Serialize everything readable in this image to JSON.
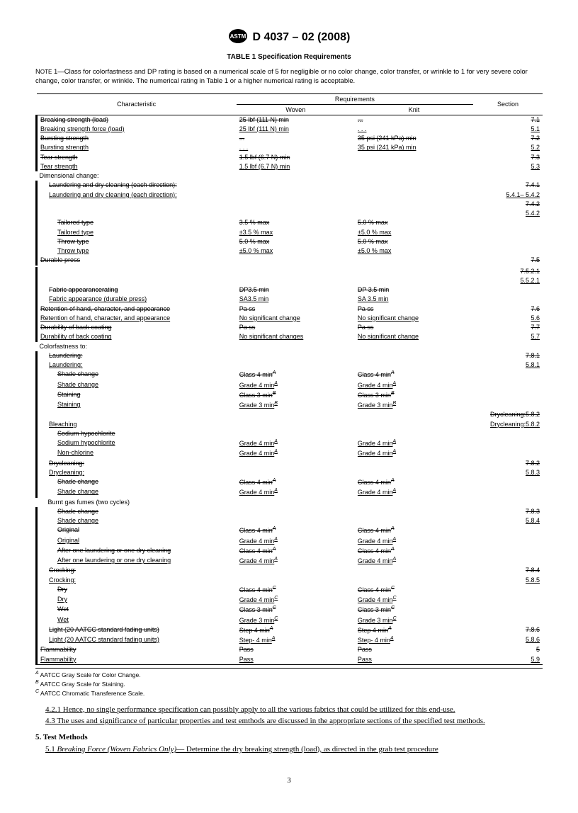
{
  "doc_id": "D 4037 – 02 (2008)",
  "table_title": "TABLE 1  Specification Requirements",
  "note": "NOTE 1—Class for colorfastness and DP rating is based on a numerical scale of 5 for negligible or no color change, color transfer, or wrinkle to 1 for very severe color change, color transfer, or wrinkle. The numerical rating in Table 1 or a higher numerical rating is acceptable.",
  "headers": {
    "characteristic": "Characteristic",
    "requirements": "Requirements",
    "woven": "Woven",
    "knit": "Knit",
    "section": "Section"
  },
  "rows": [
    {
      "c": "Breaking strength (load)",
      "w": "25 lbf (111 N) min",
      "k": "...",
      "s": "7.1",
      "bar": 1,
      "strike": 1
    },
    {
      "c": "Breaking strength force (load)",
      "w": "25 lbf (111 N) min",
      "k": ". . .",
      "s": "5.1",
      "bar": 1,
      "ul": 1
    },
    {
      "c": "Bursting strength",
      "w": "...",
      "k": "35 psi (241 kPa) min",
      "s": "7.2",
      "bar": 1,
      "strike": 1
    },
    {
      "c": "Bursting strength",
      "w": ". . .",
      "k": "35 psi (241 kPa) min",
      "s": "5.2",
      "bar": 1,
      "ul": 1
    },
    {
      "c": "Tear strength",
      "w": "1.5 lbf (6.7 N) min",
      "k": "",
      "s": "7.3",
      "bar": 1,
      "strike": 1
    },
    {
      "c": "Tear strength",
      "w": "1.5 lbf (6.7 N) min",
      "k": "",
      "s": "5.3",
      "bar": 1,
      "ul": 1
    },
    {
      "c": "Dimensional change:",
      "w": "",
      "k": "",
      "s": "",
      "bar": 0
    },
    {
      "c": "Laundering and dry cleaning (each direction):",
      "w": "",
      "k": "",
      "s": "7.4.1",
      "bar": 1,
      "strike": 1,
      "indent": 1
    },
    {
      "c": "Laundering and dry cleaning (each direction):",
      "w": "",
      "k": "",
      "s": "5.4.1– 5.4.2",
      "bar": 1,
      "ul": 1,
      "indent": 1
    },
    {
      "c": "",
      "w": "",
      "k": "",
      "s": "7.4.2",
      "bar": 1,
      "strike": 1
    },
    {
      "c": "",
      "w": "",
      "k": "",
      "s": "5.4.2",
      "bar": 1,
      "ul": 1
    },
    {
      "c": "Tailored type",
      "w": "3.5 % max",
      "k": "5.0 % max",
      "s": "",
      "bar": 1,
      "strike": 1,
      "indent": 2
    },
    {
      "c": "Tailored type",
      "w": "±3.5 % max",
      "k": "±5.0 % max",
      "s": "",
      "bar": 1,
      "ul": 1,
      "indent": 2
    },
    {
      "c": "Throw type",
      "w": "5.0 % max",
      "k": "5.0 % max",
      "s": "",
      "bar": 1,
      "strike": 1,
      "indent": 2
    },
    {
      "c": "Throw type",
      "w": "±5.0 % max",
      "k": "±5.0 % max",
      "s": "",
      "bar": 1,
      "ul": 1,
      "indent": 2
    },
    {
      "c": "Durable press",
      "w": "",
      "k": "",
      "s": "7.5",
      "bar": 1,
      "strike": 1
    },
    {
      "c": "",
      "w": "",
      "k": "",
      "s": "",
      "bar": 0
    },
    {
      "c": "",
      "w": "",
      "k": "",
      "s": "7.5.2.1",
      "bar": 1,
      "strike": 1
    },
    {
      "c": "",
      "w": "",
      "k": "",
      "s": "5.5.2.1",
      "bar": 1,
      "ul": 1
    },
    {
      "c": "Fabric appearancerating",
      "w": "DP3.5 min",
      "k": "DP 3.5 min",
      "s": "",
      "bar": 1,
      "strike": 1,
      "indent": 1
    },
    {
      "c": "Fabric appearance (durable press)",
      "w": "SA3.5 min",
      "k": "SA 3.5 min",
      "s": "",
      "bar": 1,
      "ul": 1,
      "indent": 1
    },
    {
      "c": "Retention of hand, character, and appearance",
      "w": "Pa ss",
      "k": "Pa ss",
      "s": "7.6",
      "bar": 1,
      "strike": 1
    },
    {
      "c": "Retention of hand, character, and appearance",
      "w": "No significant change",
      "k": "No significant change",
      "s": "5.6",
      "bar": 1,
      "ul": 1
    },
    {
      "c": "Durability of back coating",
      "w": "Pa ss",
      "k": "Pa ss",
      "s": "7.7",
      "bar": 1,
      "strike": 1
    },
    {
      "c": "Durability of back coating",
      "w": "No significant changes",
      "k": "No significant change",
      "s": "5.7",
      "bar": 1,
      "ul": 1
    },
    {
      "c": "Colorfastness to:",
      "w": "",
      "k": "",
      "s": "",
      "bar": 0
    },
    {
      "c": "Laundering:",
      "w": "",
      "k": "",
      "s": "7.8.1",
      "bar": 1,
      "strike": 1,
      "indent": 1
    },
    {
      "c": "Laundering:",
      "w": "",
      "k": "",
      "s": "5.8.1",
      "bar": 1,
      "ul": 1,
      "indent": 1
    },
    {
      "c": "Shade change",
      "w": "Class 4 min",
      "k": "Class 4 min",
      "s": "",
      "bar": 1,
      "strike": 1,
      "indent": 2,
      "supA": 1
    },
    {
      "c": "Shade change",
      "w": "Grade 4 min",
      "k": "Grade 4 min",
      "s": "",
      "bar": 1,
      "ul": 1,
      "indent": 2,
      "supA": 1
    },
    {
      "c": "Staining",
      "w": "Class 3 min",
      "k": "Class 3 min",
      "s": "",
      "bar": 1,
      "strike": 1,
      "indent": 2,
      "supB": 1
    },
    {
      "c": "Staining",
      "w": "Grade 3 min",
      "k": "Grade 3 min",
      "s": "",
      "bar": 1,
      "ul": 1,
      "indent": 2,
      "supB": 1
    },
    {
      "c": "",
      "w": "",
      "k": "",
      "s": "Drycleaning:5.8.2",
      "bar": 1,
      "strike": 1
    },
    {
      "c": "Bleaching",
      "w": "",
      "k": "",
      "s": "Drycleaning:5.8.2",
      "bar": 1,
      "ul": 1,
      "indent": 1
    },
    {
      "c": "Sodium hypochlorite",
      "w": "",
      "k": "",
      "s": "",
      "bar": 1,
      "strike": 1,
      "indent": 2
    },
    {
      "c": "Sodium hypochlorite",
      "w": "Grade 4 min",
      "k": "Grade 4 min",
      "s": "",
      "bar": 1,
      "ul": 1,
      "indent": 2,
      "supA": 1
    },
    {
      "c": "Non-chlorine",
      "w": "Grade 4 min",
      "k": "Grade 4 min",
      "s": "",
      "bar": 1,
      "ul": 1,
      "indent": 2,
      "supA": 1
    },
    {
      "c": "Drycleaning:",
      "w": "",
      "k": "",
      "s": "7.8.2",
      "bar": 1,
      "strike": 1,
      "indent": 1
    },
    {
      "c": "Drycleaning:",
      "w": "",
      "k": "",
      "s": "5.8.3",
      "bar": 1,
      "ul": 1,
      "indent": 1
    },
    {
      "c": "Shade change",
      "w": "Class 4 min",
      "k": "Class 4 min",
      "s": "",
      "bar": 1,
      "strike": 1,
      "indent": 2,
      "supA": 1
    },
    {
      "c": "Shade change",
      "w": "Grade 4 min",
      "k": "Grade 4 min",
      "s": "",
      "bar": 1,
      "ul": 1,
      "indent": 2,
      "supA": 1
    },
    {
      "c": "Burnt gas fumes (two cycles)",
      "w": "",
      "k": "",
      "s": "",
      "bar": 0,
      "indent": 1
    },
    {
      "c": "Shade change",
      "w": "",
      "k": "",
      "s": "7.8.3",
      "bar": 1,
      "strike": 1,
      "indent": 2
    },
    {
      "c": "Shade change",
      "w": "",
      "k": "",
      "s": "5.8.4",
      "bar": 1,
      "ul": 1,
      "indent": 2
    },
    {
      "c": "Original",
      "w": "Class 4 min",
      "k": "Class 4 min",
      "s": "",
      "bar": 1,
      "strike": 1,
      "indent": 2,
      "supA": 1
    },
    {
      "c": "Original",
      "w": "Grade 4 min",
      "k": "Grade 4 min",
      "s": "",
      "bar": 1,
      "ul": 1,
      "indent": 2,
      "supA": 1
    },
    {
      "c": "After one laundering or one dry cleaning",
      "w": "Class 4 min",
      "k": "Class 4 min",
      "s": "",
      "bar": 1,
      "strike": 1,
      "indent": 2,
      "supA": 1
    },
    {
      "c": "After one laundering or one dry cleaning",
      "w": "Grade 4 min",
      "k": "Grade 4 min",
      "s": "",
      "bar": 1,
      "ul": 1,
      "indent": 2,
      "supA": 1
    },
    {
      "c": "Crocking:",
      "w": "",
      "k": "",
      "s": "7.8.4",
      "bar": 1,
      "strike": 1,
      "indent": 1
    },
    {
      "c": "Crocking:",
      "w": "",
      "k": "",
      "s": "5.8.5",
      "bar": 1,
      "ul": 1,
      "indent": 1
    },
    {
      "c": "Dry",
      "w": "Class 4 min",
      "k": "Class 4 min",
      "s": "",
      "bar": 1,
      "strike": 1,
      "indent": 2,
      "supC": 1
    },
    {
      "c": "Dry",
      "w": "Grade 4 min",
      "k": "Grade 4 min",
      "s": "",
      "bar": 1,
      "ul": 1,
      "indent": 2,
      "supC": 1
    },
    {
      "c": "Wet",
      "w": "Class 3 min",
      "k": "Class 3 min",
      "s": "",
      "bar": 1,
      "strike": 1,
      "indent": 2,
      "supC": 1
    },
    {
      "c": "Wet",
      "w": "Grade 3 min",
      "k": "Grade 3 min",
      "s": "",
      "bar": 1,
      "ul": 1,
      "indent": 2,
      "supC": 1
    },
    {
      "c": "Light (20 AATCC standard fading units)",
      "w": "Step 4 min",
      "k": "Step 4 min",
      "s": "7.8.6",
      "bar": 1,
      "strike": 1,
      "indent": 1,
      "supA": 1
    },
    {
      "c": "Light (20 AATCC standard fading units)",
      "w": "Step- 4 min",
      "k": "Step- 4 min",
      "s": "5.8.6",
      "bar": 1,
      "ul": 1,
      "indent": 1,
      "supA": 1
    },
    {
      "c": "Flammability",
      "w": "Pass",
      "k": "Pass",
      "s": "5",
      "bar": 1,
      "strike": 1
    },
    {
      "c": "Flammability",
      "w": "Pass",
      "k": "Pass",
      "s": "5.9",
      "bar": 1,
      "ul": 1
    }
  ],
  "footnotes": {
    "a": "AATCC Gray Scale for Color Change.",
    "b": "AATCC Gray Scale for Staining.",
    "c": "AATCC Chromatic Transference Scale."
  },
  "body": {
    "p1": "4.2.1 Hence, no single performance specification can possibly apply to all the various fabrics that could be utilized for this end-use.",
    "p2": "4.3 The uses and significance of particular properties and test emthods are discussed in the appropriate sections of the specified test methods.",
    "sec5": "5. Test Methods",
    "p3a": "5.1 ",
    "p3b": "Breaking Force (Woven Fabrics Only)",
    "p3c": "— Determine the dry breaking strength (load), as directed in the grab test procedure"
  },
  "page": "3"
}
